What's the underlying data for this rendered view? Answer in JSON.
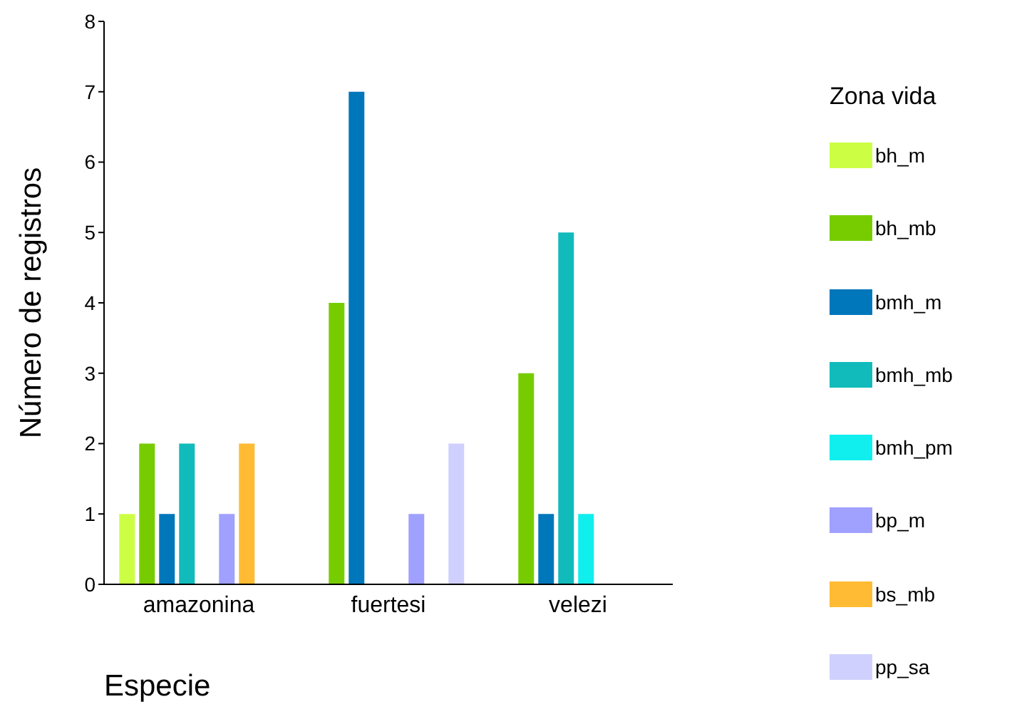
{
  "chart_data": {
    "type": "bar",
    "xlabel": "Especie",
    "ylabel": "Número de registros",
    "legend_title": "Zona vida",
    "categories": [
      "amazonina",
      "fuertesi",
      "velezi"
    ],
    "series": [
      {
        "name": "bh_m",
        "color": "#ccff44",
        "values": [
          1,
          null,
          null
        ]
      },
      {
        "name": "bh_mb",
        "color": "#77cc00",
        "values": [
          2,
          4,
          3
        ]
      },
      {
        "name": "bmh_m",
        "color": "#0077bb",
        "values": [
          1,
          7,
          1
        ]
      },
      {
        "name": "bmh_mb",
        "color": "#11bbbb",
        "values": [
          2,
          null,
          5
        ]
      },
      {
        "name": "bmh_pm",
        "color": "#11eeee",
        "values": [
          null,
          null,
          1
        ]
      },
      {
        "name": "bp_m",
        "color": "#a0a0ff",
        "values": [
          1,
          1,
          null
        ]
      },
      {
        "name": "bs_mb",
        "color": "#ffbb33",
        "values": [
          2,
          null,
          null
        ]
      },
      {
        "name": "pp_sa",
        "color": "#d0d0ff",
        "values": [
          null,
          2,
          null
        ]
      }
    ],
    "ylim": [
      0,
      8
    ],
    "yticks": [
      0,
      1,
      2,
      3,
      4,
      5,
      6,
      7,
      8
    ],
    "grid": false,
    "legend": "right"
  }
}
